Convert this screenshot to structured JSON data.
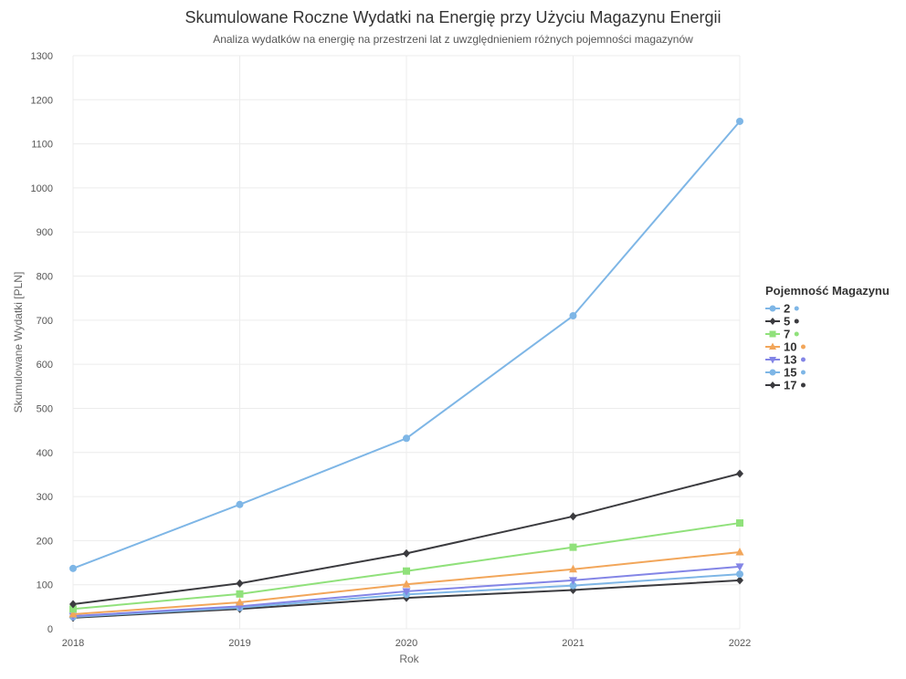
{
  "chart_data": {
    "type": "line",
    "title": "Skumulowane Roczne Wydatki na Energię przy Użyciu Magazynu Energii",
    "subtitle": "Analiza wydatków na energię na przestrzeni lat z uwzględnieniem różnych pojemności magazynów",
    "xlabel": "Rok",
    "ylabel": "Skumulowane Wydatki [PLN]",
    "x": [
      2018,
      2019,
      2020,
      2021,
      2022
    ],
    "ylim": [
      0,
      1300
    ],
    "yticks": [
      0,
      100,
      200,
      300,
      400,
      500,
      600,
      700,
      800,
      900,
      1000,
      1100,
      1200,
      1300
    ],
    "grid": true,
    "legend_title": "Pojemność Magazynu",
    "legend_position": "right",
    "series": [
      {
        "name": "2",
        "color": "#7eb6e6",
        "marker": "circle",
        "values": [
          137,
          282,
          432,
          710,
          1151
        ]
      },
      {
        "name": "5",
        "color": "#3b3b3f",
        "marker": "diamond",
        "values": [
          56,
          103,
          171,
          255,
          352
        ]
      },
      {
        "name": "7",
        "color": "#90e17b",
        "marker": "square",
        "values": [
          45,
          79,
          131,
          185,
          240
        ]
      },
      {
        "name": "10",
        "color": "#f2a65a",
        "marker": "triangle-up",
        "values": [
          33,
          60,
          101,
          135,
          174
        ]
      },
      {
        "name": "13",
        "color": "#8385e6",
        "marker": "triangle-down",
        "values": [
          29,
          51,
          85,
          110,
          141
        ]
      },
      {
        "name": "15",
        "color": "#7eb6e6",
        "marker": "circle",
        "values": [
          27,
          48,
          78,
          98,
          124
        ]
      },
      {
        "name": "17",
        "color": "#3b3b3f",
        "marker": "diamond",
        "values": [
          25,
          45,
          70,
          88,
          110
        ]
      }
    ]
  }
}
